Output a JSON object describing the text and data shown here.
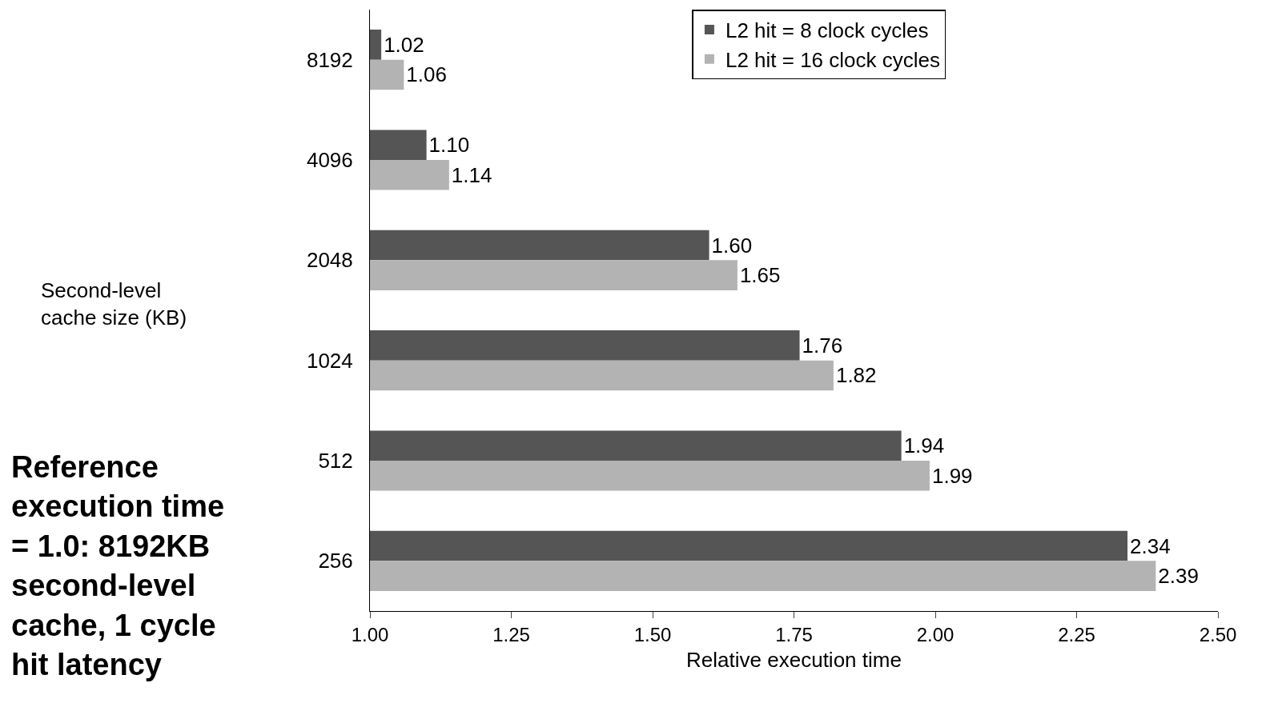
{
  "chart_data": {
    "type": "bar",
    "orientation": "horizontal",
    "xlabel": "Relative execution time",
    "categories": [
      "8192",
      "4096",
      "2048",
      "1024",
      "512",
      "256"
    ],
    "series": [
      {
        "name": "L2 hit = 8 clock cycles",
        "color": "#555555",
        "values": [
          1.02,
          1.1,
          1.6,
          1.76,
          1.94,
          2.34
        ],
        "value_labels": [
          "1.02",
          "1.10",
          "1.60",
          "1.76",
          "1.94",
          "2.34"
        ]
      },
      {
        "name": "L2 hit = 16 clock cycles",
        "color": "#b3b3b3",
        "values": [
          1.06,
          1.14,
          1.65,
          1.82,
          1.99,
          2.39
        ],
        "value_labels": [
          "1.06",
          "1.14",
          "1.65",
          "1.82",
          "1.99",
          "2.39"
        ]
      }
    ],
    "xlim": [
      1.0,
      2.5
    ],
    "xticks": [
      {
        "value": 1.0,
        "label": "1.00"
      },
      {
        "value": 1.25,
        "label": "1.25"
      },
      {
        "value": 1.5,
        "label": "1.50"
      },
      {
        "value": 1.75,
        "label": "1.75"
      },
      {
        "value": 2.0,
        "label": "2.00"
      },
      {
        "value": 2.25,
        "label": "2.25"
      },
      {
        "value": 2.5,
        "label": "2.50"
      }
    ],
    "annotations": [
      "Second-level cache size (KB)",
      "Reference execution time = 1.0: 8192KB second-level cache, 1 cycle hit latency"
    ],
    "legend": "top right"
  }
}
